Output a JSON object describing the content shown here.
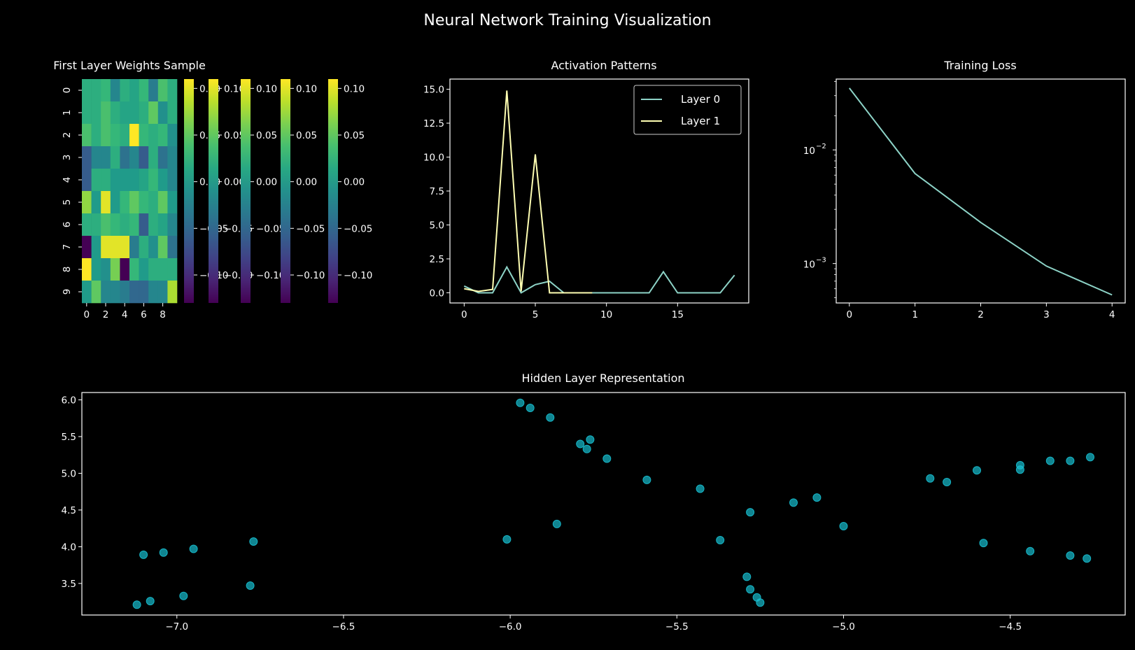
{
  "figure": {
    "title": "Neural Network Training Visualization",
    "background": "#000000",
    "text_color": "#ffffff"
  },
  "chart_data": [
    {
      "type": "heatmap",
      "title": "First Layer Weights Sample",
      "colormap": "viridis",
      "vmin": -0.13,
      "vmax": 0.11,
      "x_ticks": [
        "0",
        "2",
        "4",
        "6",
        "8"
      ],
      "y_ticks": [
        "0",
        "1",
        "2",
        "3",
        "4",
        "5",
        "6",
        "7",
        "8",
        "9"
      ],
      "colorbar_ticks": [
        "0.10",
        "0.05",
        "0.00",
        "−0.05",
        "−0.10"
      ],
      "colorbar_tick_values": [
        0.1,
        0.05,
        0.0,
        -0.05,
        -0.1
      ],
      "colorbar_count": 5,
      "values": [
        [
          0.02,
          0.02,
          0.03,
          -0.02,
          0.02,
          0.01,
          0.03,
          -0.03,
          0.04,
          0.02
        ],
        [
          0.02,
          0.02,
          0.04,
          0.02,
          0.01,
          0.01,
          0.02,
          0.05,
          -0.01,
          0.02
        ],
        [
          0.04,
          0.02,
          0.04,
          0.03,
          0.02,
          0.11,
          0.03,
          0.02,
          0.03,
          -0.01
        ],
        [
          -0.06,
          -0.02,
          -0.02,
          0.02,
          -0.04,
          -0.02,
          -0.06,
          0.02,
          -0.04,
          -0.02
        ],
        [
          -0.06,
          0.02,
          0.02,
          0.0,
          0.0,
          0.0,
          0.01,
          0.03,
          0.0,
          -0.02
        ],
        [
          0.07,
          0.0,
          0.1,
          0.0,
          0.03,
          0.05,
          0.03,
          0.02,
          0.05,
          0.0
        ],
        [
          0.02,
          0.02,
          0.04,
          0.03,
          0.02,
          0.03,
          -0.06,
          0.02,
          0.01,
          -0.02
        ],
        [
          -0.13,
          0.0,
          0.1,
          0.1,
          0.1,
          -0.03,
          0.02,
          -0.01,
          0.05,
          -0.04
        ],
        [
          0.11,
          0.0,
          -0.01,
          0.06,
          -0.13,
          0.03,
          0.0,
          0.02,
          0.02,
          0.02
        ],
        [
          0.0,
          0.05,
          -0.02,
          -0.02,
          -0.03,
          -0.05,
          -0.05,
          -0.02,
          -0.02,
          0.08
        ]
      ]
    },
    {
      "type": "line",
      "title": "Activation Patterns",
      "xlim": [
        -1,
        20
      ],
      "ylim": [
        -0.75,
        15.75
      ],
      "x_ticks": [
        0,
        5,
        10,
        15
      ],
      "y_ticks": [
        0.0,
        2.5,
        5.0,
        7.5,
        10.0,
        12.5,
        15.0
      ],
      "legend_position": "top-right",
      "series": [
        {
          "name": "Layer 0",
          "color": "#8dd3c7",
          "x": [
            0,
            1,
            2,
            3,
            4,
            5,
            6,
            7,
            8,
            9,
            10,
            11,
            12,
            13,
            14,
            15,
            16,
            17,
            18,
            19
          ],
          "y": [
            0.5,
            0.0,
            0.0,
            1.9,
            0.0,
            0.6,
            0.85,
            0.0,
            0.0,
            0.0,
            0.0,
            0.0,
            0.0,
            0.0,
            1.55,
            0.0,
            0.0,
            0.0,
            0.0,
            1.3
          ]
        },
        {
          "name": "Layer 1",
          "color": "#ffffb3",
          "x": [
            0,
            1,
            2,
            3,
            4,
            5,
            6,
            7,
            8,
            9
          ],
          "y": [
            0.3,
            0.1,
            0.25,
            14.9,
            0.1,
            10.2,
            0.0,
            0.0,
            0.0,
            0.0
          ]
        }
      ]
    },
    {
      "type": "line",
      "title": "Training Loss",
      "y_scale": "log",
      "xlim": [
        -0.2,
        4.2
      ],
      "ylim": [
        0.00045,
        0.042
      ],
      "x_ticks": [
        0,
        1,
        2,
        3,
        4
      ],
      "y_major_ticks": [
        {
          "base": "10",
          "exp": "−2",
          "value": 0.01
        },
        {
          "base": "10",
          "exp": "−3",
          "value": 0.001
        }
      ],
      "series": [
        {
          "color": "#8dd3c7",
          "x": [
            0,
            1,
            2,
            3,
            4
          ],
          "y": [
            0.035,
            0.0062,
            0.0023,
            0.00095,
            0.00053
          ]
        }
      ]
    },
    {
      "type": "scatter",
      "title": "Hidden Layer Representation",
      "color": "#17becf",
      "xlim": [
        -7.285,
        -4.155
      ],
      "ylim": [
        3.07,
        6.1
      ],
      "x_ticks": [
        -7.0,
        -6.5,
        -6.0,
        -5.5,
        -5.0,
        -4.5
      ],
      "x_tick_labels": [
        "−7.0",
        "−6.5",
        "−6.0",
        "−5.5",
        "−5.0",
        "−4.5"
      ],
      "y_ticks": [
        3.5,
        4.0,
        4.5,
        5.0,
        5.5,
        6.0
      ],
      "points": [
        [
          -7.12,
          3.21
        ],
        [
          -7.08,
          3.26
        ],
        [
          -6.98,
          3.33
        ],
        [
          -6.78,
          3.47
        ],
        [
          -7.1,
          3.89
        ],
        [
          -7.04,
          3.92
        ],
        [
          -6.95,
          3.97
        ],
        [
          -6.77,
          4.07
        ],
        [
          -6.01,
          4.1
        ],
        [
          -5.86,
          4.31
        ],
        [
          -5.37,
          4.09
        ],
        [
          -5.97,
          5.96
        ],
        [
          -5.94,
          5.89
        ],
        [
          -5.88,
          5.76
        ],
        [
          -5.79,
          5.4
        ],
        [
          -5.76,
          5.46
        ],
        [
          -5.77,
          5.33
        ],
        [
          -5.71,
          5.2
        ],
        [
          -5.59,
          4.91
        ],
        [
          -5.43,
          4.79
        ],
        [
          -5.28,
          4.47
        ],
        [
          -5.15,
          4.6
        ],
        [
          -5.08,
          4.67
        ],
        [
          -5.0,
          4.28
        ],
        [
          -5.29,
          3.59
        ],
        [
          -5.28,
          3.42
        ],
        [
          -5.26,
          3.31
        ],
        [
          -5.25,
          3.24
        ],
        [
          -4.74,
          4.93
        ],
        [
          -4.69,
          4.88
        ],
        [
          -4.6,
          5.04
        ],
        [
          -4.47,
          5.05
        ],
        [
          -4.47,
          5.11
        ],
        [
          -4.38,
          5.17
        ],
        [
          -4.32,
          5.17
        ],
        [
          -4.26,
          5.22
        ],
        [
          -4.58,
          4.05
        ],
        [
          -4.44,
          3.94
        ],
        [
          -4.32,
          3.88
        ],
        [
          -4.27,
          3.84
        ]
      ]
    }
  ]
}
